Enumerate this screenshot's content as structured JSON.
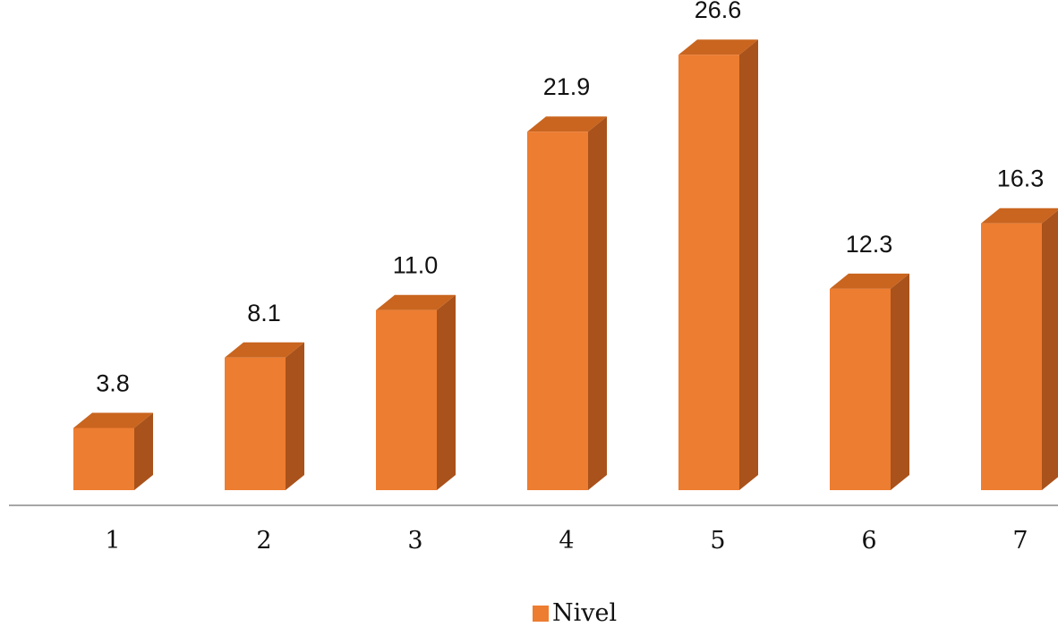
{
  "chart_data": {
    "type": "bar",
    "style": "3d-column",
    "categories": [
      "1",
      "2",
      "3",
      "4",
      "5",
      "6",
      "7"
    ],
    "series": [
      {
        "name": "Nivel",
        "values": [
          3.8,
          8.1,
          11.0,
          21.9,
          26.6,
          12.3,
          16.3
        ],
        "color": "#ED7D31"
      }
    ],
    "value_labels": [
      "3.8",
      "8.1",
      "11.0",
      "21.9",
      "26.6",
      "12.3",
      "16.3"
    ],
    "ylim": [
      0,
      27
    ],
    "grid": false,
    "legend_position": "bottom",
    "colors": {
      "front": "#ED7D31",
      "side": "#A9521B",
      "top": "#C9651F",
      "axis": "#A6A6A6"
    }
  },
  "legend": {
    "label": "Nivel"
  }
}
